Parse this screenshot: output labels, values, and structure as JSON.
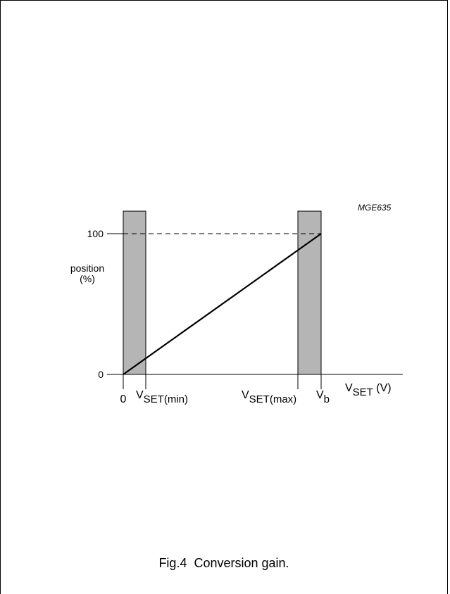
{
  "chart_data": {
    "type": "line",
    "code": "MGE635",
    "caption": "Fig.4  Conversion gain.",
    "ylabel": [
      "position",
      "(%)"
    ],
    "xlabel": {
      "main": "V",
      "sub": "SET",
      "unit": " (V)"
    },
    "yticks": [
      {
        "value": 0,
        "label": "0"
      },
      {
        "value": 100,
        "label": "100"
      }
    ],
    "xticks": [
      {
        "key": "zero",
        "main": "0",
        "sub": ""
      },
      {
        "key": "vset_min",
        "main": "V",
        "sub": "SET(min)"
      },
      {
        "key": "vset_max",
        "main": "V",
        "sub": "SET(max)"
      },
      {
        "key": "vb",
        "main": "V",
        "sub": "b"
      }
    ],
    "series": [
      {
        "points": [
          {
            "x": "zero",
            "y": 0
          },
          {
            "x": "vb",
            "y": 100
          }
        ]
      }
    ],
    "shaded_regions": [
      {
        "from": "zero",
        "to": "vset_min"
      },
      {
        "from": "vset_max",
        "to": "vb"
      }
    ],
    "reference_lines": [
      {
        "axis": "y",
        "value": 100,
        "style": "dashed"
      }
    ],
    "colors": {
      "shade": "#b5b5b5",
      "line": "#000000"
    }
  }
}
